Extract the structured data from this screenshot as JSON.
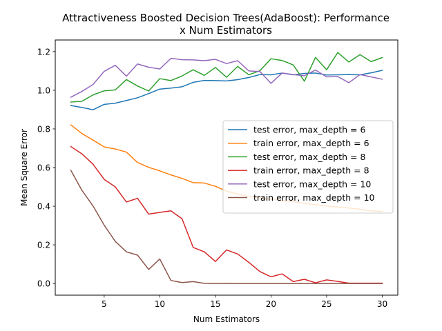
{
  "chart_data": {
    "type": "line",
    "title_line1": "Attractiveness Boosted Decision Trees(AdaBoost): Performance",
    "title_line2": "x Num Estimators",
    "xlabel": "Num Estimators",
    "ylabel": "Mean Square Error",
    "xlim": [
      0.6,
      31.4
    ],
    "ylim": [
      -0.06,
      1.26
    ],
    "xticks": [
      5,
      10,
      15,
      20,
      25,
      30
    ],
    "yticks": [
      0.0,
      0.2,
      0.4,
      0.6,
      0.8,
      1.0,
      1.2
    ],
    "ytick_labels": [
      "0.0",
      "0.2",
      "0.4",
      "0.6",
      "0.8",
      "1.0",
      "1.2"
    ],
    "grid": false,
    "legend_position": "center-right",
    "x": [
      2,
      3,
      4,
      5,
      6,
      7,
      8,
      9,
      10,
      11,
      12,
      13,
      14,
      15,
      16,
      17,
      18,
      19,
      20,
      21,
      22,
      23,
      24,
      25,
      26,
      27,
      28,
      29,
      30
    ],
    "series": [
      {
        "name": "test error, max_depth = 6",
        "color": "#1f77b4",
        "values": [
          0.921,
          0.911,
          0.899,
          0.927,
          0.933,
          0.947,
          0.961,
          0.983,
          1.006,
          1.011,
          1.018,
          1.041,
          1.051,
          1.05,
          1.048,
          1.055,
          1.066,
          1.081,
          1.08,
          1.089,
          1.08,
          1.087,
          1.089,
          1.079,
          1.08,
          1.081,
          1.08,
          1.09,
          1.103
        ]
      },
      {
        "name": "train error, max_depth = 6",
        "color": "#ff7f0e",
        "values": [
          0.821,
          0.776,
          0.742,
          0.707,
          0.696,
          0.68,
          0.626,
          0.601,
          0.583,
          0.562,
          0.544,
          0.522,
          0.52,
          0.503,
          0.478,
          0.463,
          0.45,
          0.443,
          0.436,
          0.43,
          0.423,
          0.415,
          0.408,
          0.401,
          0.396,
          0.391,
          0.384,
          0.376,
          0.373
        ]
      },
      {
        "name": "test error, max_depth = 8",
        "color": "#2ca02c",
        "values": [
          0.939,
          0.943,
          0.976,
          0.997,
          1.002,
          1.055,
          1.022,
          0.996,
          1.06,
          1.05,
          1.074,
          1.106,
          1.077,
          1.118,
          1.067,
          1.123,
          1.08,
          1.101,
          1.163,
          1.154,
          1.131,
          1.047,
          1.17,
          1.106,
          1.195,
          1.146,
          1.184,
          1.148,
          1.169
        ]
      },
      {
        "name": "train error, max_depth = 8",
        "color": "#d62728",
        "values": [
          0.709,
          0.671,
          0.617,
          0.539,
          0.5,
          0.422,
          0.441,
          0.359,
          0.368,
          0.376,
          0.335,
          0.187,
          0.164,
          0.114,
          0.174,
          0.153,
          0.11,
          0.062,
          0.035,
          0.05,
          0.01,
          0.022,
          0.004,
          0.019,
          0.011,
          0.002,
          0.002,
          0.002,
          0.002
        ]
      },
      {
        "name": "test error, max_depth = 10",
        "color": "#9467bd",
        "values": [
          0.964,
          0.994,
          1.03,
          1.098,
          1.129,
          1.073,
          1.136,
          1.119,
          1.11,
          1.165,
          1.158,
          1.157,
          1.153,
          1.16,
          1.138,
          1.153,
          1.1,
          1.097,
          1.036,
          1.089,
          1.081,
          1.075,
          1.105,
          1.069,
          1.071,
          1.039,
          1.081,
          1.069,
          1.057
        ]
      },
      {
        "name": "train error, max_depth = 10",
        "color": "#8c564b",
        "values": [
          0.586,
          0.482,
          0.401,
          0.302,
          0.218,
          0.164,
          0.147,
          0.073,
          0.127,
          0.016,
          0.005,
          0.01,
          0.001,
          0.0,
          0.001,
          0.0,
          0.0,
          0.0,
          0.0,
          0.0,
          0.0,
          0.0,
          0.0,
          0.0,
          0.0,
          0.0,
          0.0,
          0.0,
          0.0
        ]
      }
    ]
  }
}
